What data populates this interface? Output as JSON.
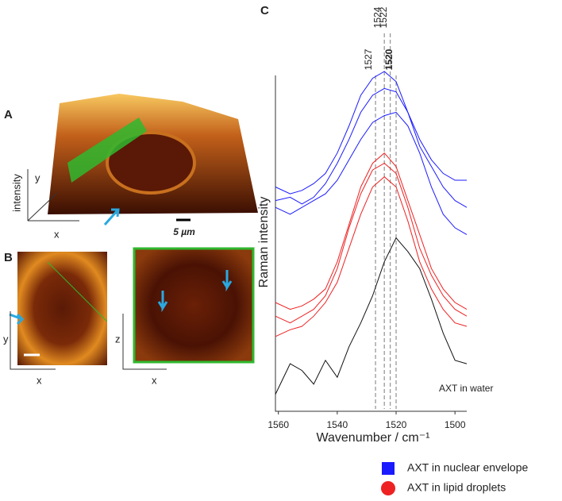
{
  "panels": {
    "A": {
      "label": "A",
      "axes": [
        "y",
        "intensity",
        "x"
      ],
      "scale_bar": "5 µm"
    },
    "B": {
      "label": "B",
      "left_axes": [
        "y",
        "x"
      ],
      "right_axes": [
        "z",
        "x"
      ]
    }
  },
  "chart_data": {
    "type": "line",
    "panel_label": "C",
    "x_label": "Wavenumber / cm⁻¹",
    "y_label": "Raman intensity",
    "x": [
      1561,
      1556,
      1552,
      1548,
      1544,
      1540,
      1536,
      1532,
      1528,
      1524,
      1520,
      1516,
      1512,
      1508,
      1504,
      1500,
      1496
    ],
    "xlim": [
      1561,
      1496
    ],
    "xticks": [
      1560,
      1540,
      1520,
      1500
    ],
    "ylim": [
      0,
      100
    ],
    "reference_lines": [
      1527,
      1524,
      1522,
      1520
    ],
    "reference_bold": [
      false,
      false,
      false,
      true
    ],
    "series": [
      {
        "color": "#1a1aff",
        "values": [
          66,
          64,
          65,
          67,
          70,
          76,
          84,
          93,
          98,
          100,
          97,
          88,
          80,
          74,
          70,
          68,
          68
        ]
      },
      {
        "color": "#1a1aff",
        "values": [
          60,
          58,
          60,
          62,
          64,
          68,
          74,
          80,
          85,
          87,
          88,
          84,
          76,
          66,
          58,
          54,
          52
        ]
      },
      {
        "color": "#1a1aff",
        "values": [
          62,
          63,
          61,
          63,
          67,
          73,
          80,
          88,
          93,
          95,
          94,
          88,
          78,
          72,
          66,
          62,
          60
        ]
      },
      {
        "color": "#ee2222",
        "values": [
          28,
          26,
          28,
          30,
          34,
          42,
          54,
          64,
          71,
          73,
          70,
          60,
          48,
          40,
          34,
          30,
          28
        ]
      },
      {
        "color": "#ee2222",
        "values": [
          22,
          24,
          25,
          28,
          32,
          38,
          48,
          58,
          66,
          69,
          66,
          56,
          44,
          36,
          30,
          26,
          25
        ]
      },
      {
        "color": "#ee2222",
        "values": [
          32,
          30,
          31,
          33,
          36,
          44,
          55,
          66,
          73,
          76,
          72,
          62,
          52,
          42,
          36,
          32,
          30
        ]
      },
      {
        "name": "AXT in water",
        "color": "#111111",
        "values": [
          5,
          14,
          12,
          8,
          15,
          10,
          19,
          26,
          34,
          44,
          51,
          47,
          42,
          33,
          23,
          15,
          14
        ]
      }
    ],
    "legend": [
      {
        "label": "AXT in nuclear envelope",
        "color": "#1a1aff",
        "marker": "square"
      },
      {
        "label": "AXT in lipid droplets",
        "color": "#ee2222",
        "marker": "circle"
      }
    ]
  }
}
